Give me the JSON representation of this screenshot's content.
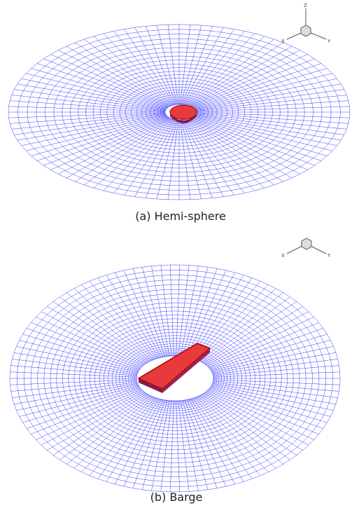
{
  "panels": [
    {
      "caption": "(a)  Hemi-sphere",
      "axes": {
        "z": "Z",
        "x": "X",
        "y": "Y"
      }
    },
    {
      "caption": "(b)  Barge",
      "axes": {
        "x": "X",
        "y": "Y"
      }
    }
  ]
}
